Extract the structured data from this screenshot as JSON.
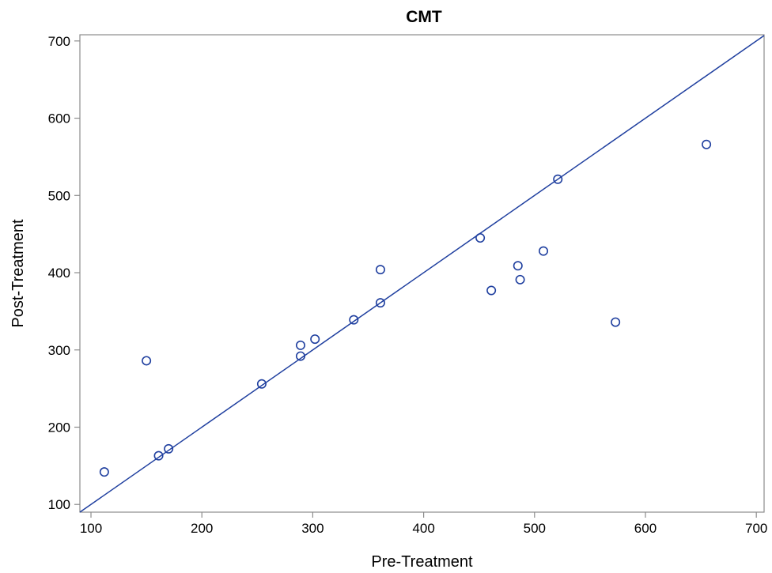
{
  "chart_data": {
    "type": "scatter",
    "title": "CMT",
    "xlabel": "Pre-Treatment",
    "ylabel": "Post-Treatment",
    "xlim": [
      90,
      707
    ],
    "ylim": [
      90,
      708
    ],
    "xticks": [
      100,
      200,
      300,
      400,
      500,
      600,
      700
    ],
    "yticks": [
      100,
      200,
      300,
      400,
      500,
      600,
      700
    ],
    "grid": false,
    "reference_line": "y = x",
    "colors": {
      "marker": "#1f3f9f",
      "line": "#1f3f9f",
      "frame": "#8c8c8c"
    },
    "points": [
      {
        "x": 112,
        "y": 142
      },
      {
        "x": 150,
        "y": 286
      },
      {
        "x": 161,
        "y": 163
      },
      {
        "x": 170,
        "y": 172
      },
      {
        "x": 254,
        "y": 256
      },
      {
        "x": 289,
        "y": 292
      },
      {
        "x": 289,
        "y": 306
      },
      {
        "x": 302,
        "y": 314
      },
      {
        "x": 337,
        "y": 339
      },
      {
        "x": 361,
        "y": 361
      },
      {
        "x": 361,
        "y": 404
      },
      {
        "x": 451,
        "y": 445
      },
      {
        "x": 461,
        "y": 377
      },
      {
        "x": 485,
        "y": 409
      },
      {
        "x": 487,
        "y": 391
      },
      {
        "x": 508,
        "y": 428
      },
      {
        "x": 521,
        "y": 521
      },
      {
        "x": 573,
        "y": 336
      },
      {
        "x": 655,
        "y": 566
      }
    ]
  }
}
